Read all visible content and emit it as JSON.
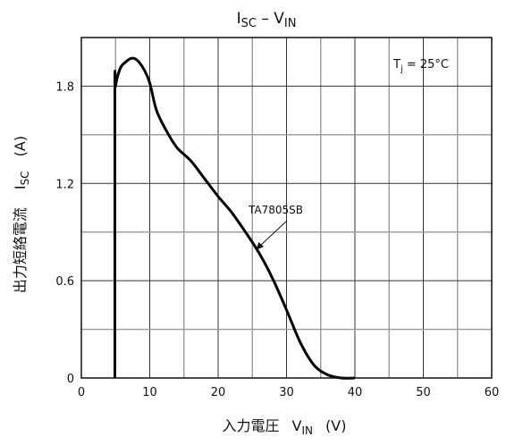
{
  "chart_data": {
    "type": "line",
    "title": {
      "main": "I",
      "sub": "SC",
      "sep": " – ",
      "main2": "V",
      "sub2": "IN"
    },
    "xlabel": {
      "jp": "入力電圧",
      "sym": "V",
      "sub": "IN",
      "unit": "(V)"
    },
    "ylabel": {
      "jp": "出力短絡電流",
      "sym": "I",
      "sub": "SC",
      "unit": "(A)"
    },
    "xlim": [
      0,
      60
    ],
    "ylim": [
      0,
      2.1
    ],
    "xticks": [
      0,
      10,
      20,
      30,
      40,
      50,
      60
    ],
    "yticks": [
      0,
      0.6,
      1.2,
      1.8
    ],
    "ytick_labels": [
      "0",
      "0.6",
      "1.2",
      "1.8"
    ],
    "grid": true,
    "annotations": {
      "condition": {
        "main": "T",
        "sub": "j",
        "text": " = 25°C"
      },
      "series_label": "TA7805SB"
    },
    "series": [
      {
        "name": "TA7805SB",
        "x": [
          4.9,
          4.9,
          5.0,
          5.3,
          5.8,
          6.5,
          7.2,
          7.8,
          8.4,
          9.2,
          10.0,
          11.0,
          12.5,
          14.0,
          16.0,
          18.0,
          20.0,
          22.0,
          24.0,
          26.0,
          28.0,
          30.0,
          32.0,
          34.0,
          36.0,
          38.0,
          40.0
        ],
        "y": [
          0.0,
          1.75,
          1.8,
          1.86,
          1.92,
          1.95,
          1.97,
          1.97,
          1.95,
          1.9,
          1.82,
          1.65,
          1.52,
          1.42,
          1.34,
          1.23,
          1.12,
          1.02,
          0.9,
          0.77,
          0.61,
          0.42,
          0.22,
          0.08,
          0.02,
          0.0,
          0.0
        ]
      }
    ]
  }
}
